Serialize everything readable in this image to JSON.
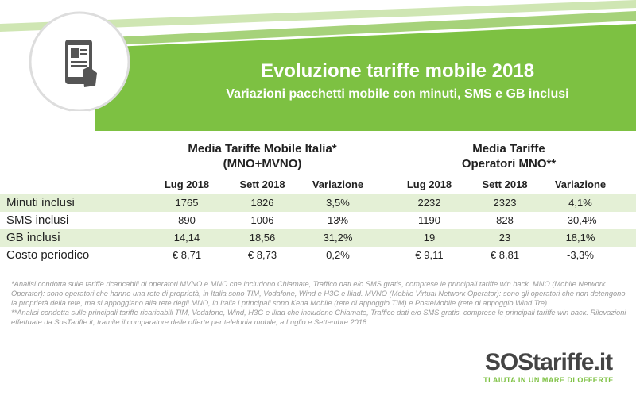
{
  "header": {
    "title": "Evoluzione tariffe mobile 2018",
    "subtitle": "Variazioni pacchetti mobile con minuti, SMS e GB inclusi"
  },
  "table": {
    "groups": [
      [
        "Media Tariffe Mobile Italia*",
        "(MNO+MVNO)"
      ],
      [
        "Media Tariffe",
        "Operatori MNO**"
      ]
    ],
    "columns": [
      "Lug 2018",
      "Sett 2018",
      "Variazione",
      "Lug 2018",
      "Sett 2018",
      "Variazione"
    ],
    "rows": [
      [
        "Minuti inclusi",
        "1765",
        "1826",
        "3,5%",
        "2232",
        "2323",
        "4,1%"
      ],
      [
        "SMS inclusi",
        "890",
        "1006",
        "13%",
        "1190",
        "828",
        "-30,4%"
      ],
      [
        "GB inclusi",
        "14,14",
        "18,56",
        "31,2%",
        "19",
        "23",
        "18,1%"
      ],
      [
        "Costo periodico",
        "€ 8,71",
        "€ 8,73",
        "0,2%",
        "€ 9,11",
        "€ 8,81",
        "-3,3%"
      ]
    ]
  },
  "footnotes": [
    "*Analisi condotta sulle tariffe ricaricabili di operatori MVNO e MNO che includono Chiamate, Traffico dati e/o SMS gratis, comprese le principali tariffe win back. MNO (Mobile Network Operator): sono operatori che hanno una rete di proprietà, in Italia sono TIM, Vodafone, Wind e H3G e Iliad. MVNO (Mobile Virtual Network Operator): sono gli operatori che non detengono la proprietà della rete, ma si appoggiano alla rete degli MNO, in Italia i principali sono Kena Mobile (rete di appoggio TIM) e PosteMobile (rete di appoggio Wind Tre).",
    "**Analisi condotta sulle principali tariffe ricaricabili TIM, Vodafone, Wind, H3G e Iliad che includono Chiamate, Traffico dati e/o SMS gratis, comprese le principali tariffe win back. Rilevazioni effettuate da SosTariffe.it, tramite il comparatore delle offerte per telefonia mobile, a Luglio e Settembre 2018."
  ],
  "logo": {
    "name": "SOStariffe.it",
    "tagline": "TI AIUTA IN UN MARE DI OFFERTE"
  }
}
